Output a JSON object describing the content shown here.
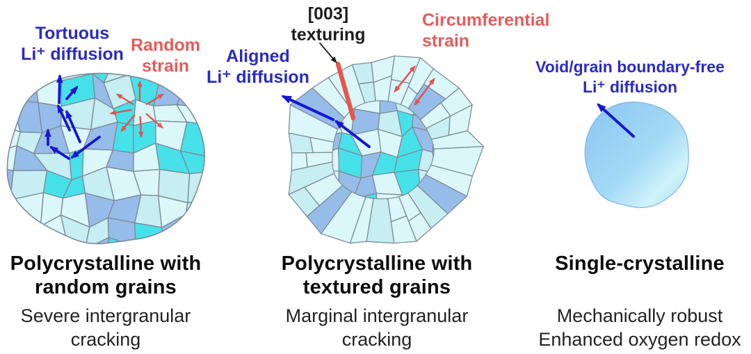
{
  "figure": {
    "background": "#ffffff",
    "colors": {
      "diffusion_label": "#2b2bc0",
      "strain_label": "#e25d5d",
      "texturing_label": "#1d1d1d",
      "title_text": "#0c0c0c",
      "subtitle_text": "#222222",
      "diffusion_arrow": "#1518cf",
      "strain_arrow": "#e05353",
      "texturing_mark": "#e8554c",
      "pointer_arrow": "#1d1d1d",
      "grain_outline": "#7e8b98",
      "grain_pale": "#dbf7f9",
      "grain_pale2": "#c6eef3",
      "grain_blue": "#96bce9",
      "grain_cyan": "#47e1ea",
      "crystal_edge": "#7fb3da",
      "crystal_gradient_start": "#8ac6f3",
      "crystal_gradient_mid": "#a5daf6",
      "crystal_gradient_sheen": "#cff3fb",
      "crystal_gradient_end": "#a2dcf2"
    },
    "panels": [
      {
        "name": "polycrystalline-random",
        "annotations": {
          "diffusion": [
            "Tortuous",
            "Li⁺ diffusion"
          ],
          "strain": [
            "Random",
            "strain"
          ]
        },
        "title": [
          "Polycrystalline with",
          "random grains"
        ],
        "subtitle": [
          "Severe intergranular",
          "cracking"
        ]
      },
      {
        "name": "polycrystalline-textured",
        "annotations": {
          "texturing": [
            "[003]",
            "texturing"
          ],
          "diffusion": [
            "Aligned",
            "Li⁺ diffusion"
          ],
          "strain": [
            "Circumferential",
            "strain"
          ]
        },
        "title": [
          "Polycrystalline with",
          "textured grains"
        ],
        "subtitle": [
          "Marginal intergranular",
          "cracking"
        ]
      },
      {
        "name": "single-crystalline",
        "annotations": {
          "diffusion": [
            "Void/grain boundary-free",
            "Li⁺ diffusion"
          ]
        },
        "title": [
          "Single-crystalline"
        ],
        "subtitle": [
          "Mechanically robust",
          "Enhanced oxygen redox"
        ]
      }
    ]
  }
}
